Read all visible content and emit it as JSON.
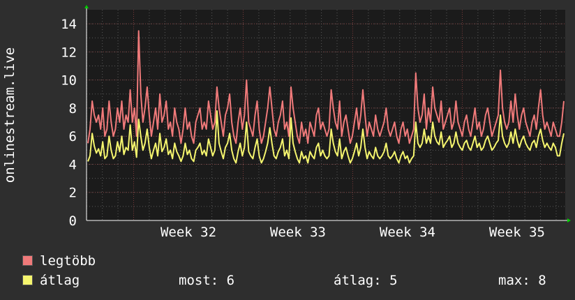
{
  "chart_data": {
    "type": "line",
    "ylabel": "onlinestream.live",
    "ylim": [
      0,
      15
    ],
    "yticks": [
      0,
      2,
      4,
      6,
      8,
      10,
      12,
      14
    ],
    "x_tick_labels": [
      "Week 32",
      "Week 33",
      "Week 34",
      "Week 35"
    ],
    "grid": true,
    "colors": {
      "background": "#2e2e2e",
      "plot_background": "#1b1b1b",
      "grid": "#5a5a5a",
      "major_grid": "#7a3a3a",
      "axis": "#ffffff",
      "arrow": "#00cc00",
      "legtobb": "#f07a7a",
      "atlag": "#f5f56e"
    },
    "series": [
      {
        "name": "legtöbb",
        "color": "#f07a7a",
        "values": [
          5.5,
          6.5,
          8.5,
          7.5,
          7.0,
          7.5,
          6.5,
          8.0,
          6.0,
          6.5,
          8.5,
          7.0,
          6.0,
          6.5,
          8.0,
          7.0,
          8.5,
          6.5,
          7.5,
          7.0,
          9.3,
          7.0,
          8.0,
          6.0,
          13.5,
          9.0,
          7.0,
          8.0,
          9.5,
          7.5,
          6.0,
          7.0,
          8.0,
          6.5,
          9.0,
          7.0,
          7.5,
          8.5,
          6.5,
          7.0,
          6.0,
          8.0,
          7.0,
          6.5,
          5.5,
          6.5,
          8.0,
          6.5,
          7.0,
          6.0,
          5.5,
          7.0,
          7.5,
          8.0,
          6.5,
          7.0,
          6.5,
          8.5,
          7.5,
          6.5,
          7.0,
          9.5,
          8.0,
          7.0,
          6.0,
          7.5,
          8.0,
          9.0,
          7.0,
          6.0,
          5.5,
          7.0,
          8.0,
          6.5,
          7.5,
          10.0,
          7.0,
          6.5,
          6.0,
          7.5,
          8.5,
          6.5,
          5.5,
          6.0,
          7.0,
          8.0,
          9.5,
          8.0,
          6.5,
          6.0,
          7.0,
          7.5,
          8.5,
          6.5,
          7.0,
          6.0,
          9.5,
          8.0,
          7.0,
          6.0,
          5.5,
          7.0,
          6.0,
          6.5,
          5.5,
          7.0,
          6.5,
          6.0,
          7.5,
          8.0,
          6.5,
          7.0,
          6.5,
          6.0,
          6.5,
          9.3,
          8.0,
          7.0,
          6.5,
          8.5,
          6.0,
          7.0,
          7.5,
          6.5,
          5.5,
          6.0,
          7.0,
          8.0,
          6.5,
          7.5,
          9.3,
          7.5,
          6.0,
          7.0,
          6.5,
          6.0,
          7.5,
          6.5,
          6.0,
          6.5,
          7.0,
          8.0,
          6.5,
          6.0,
          6.5,
          7.0,
          6.0,
          5.5,
          6.5,
          7.0,
          6.0,
          6.5,
          5.5,
          6.0,
          6.5,
          10.5,
          8.0,
          7.0,
          7.5,
          9.0,
          6.5,
          8.0,
          7.0,
          9.5,
          8.0,
          7.5,
          7.0,
          8.5,
          6.5,
          7.0,
          7.5,
          8.0,
          6.5,
          7.0,
          8.5,
          7.0,
          6.5,
          6.0,
          7.0,
          7.5,
          6.5,
          6.0,
          7.0,
          8.0,
          6.5,
          7.0,
          6.0,
          6.5,
          7.5,
          8.0,
          7.0,
          6.0,
          6.5,
          7.0,
          7.5,
          10.7,
          8.0,
          7.0,
          6.5,
          7.0,
          8.5,
          7.0,
          9.0,
          7.5,
          6.5,
          7.5,
          8.0,
          7.0,
          6.5,
          6.0,
          7.0,
          7.5,
          6.5,
          8.0,
          9.3,
          7.5,
          6.5,
          7.0,
          6.5,
          6.0,
          7.0,
          6.5,
          6.0,
          6.0,
          7.0,
          8.5
        ]
      },
      {
        "name": "átlag",
        "color": "#f5f56e",
        "values": [
          4.2,
          4.6,
          6.2,
          5.3,
          4.8,
          5.1,
          4.6,
          5.6,
          4.4,
          4.6,
          6.0,
          5.0,
          4.4,
          4.6,
          5.6,
          4.9,
          6.0,
          4.7,
          5.2,
          5.0,
          6.8,
          5.0,
          5.6,
          4.5,
          7.2,
          6.0,
          5.0,
          5.5,
          6.5,
          5.2,
          4.4,
          5.0,
          5.5,
          4.6,
          6.2,
          4.9,
          5.2,
          5.8,
          4.7,
          5.0,
          4.4,
          5.5,
          4.9,
          4.6,
          4.2,
          4.6,
          5.5,
          4.7,
          5.0,
          4.4,
          4.2,
          5.0,
          5.2,
          5.5,
          4.7,
          5.0,
          4.6,
          5.8,
          5.2,
          4.6,
          5.0,
          7.8,
          5.5,
          4.9,
          4.4,
          5.2,
          5.5,
          6.2,
          5.0,
          4.4,
          4.1,
          4.9,
          5.5,
          4.6,
          5.2,
          7.0,
          4.9,
          4.6,
          4.4,
          5.2,
          5.8,
          4.6,
          4.1,
          4.4,
          4.9,
          5.5,
          6.6,
          5.5,
          4.6,
          4.4,
          4.9,
          5.2,
          5.8,
          4.6,
          5.0,
          4.4,
          7.3,
          5.5,
          4.9,
          4.4,
          4.1,
          4.9,
          4.4,
          4.6,
          4.1,
          4.9,
          4.6,
          4.4,
          5.2,
          5.5,
          4.6,
          5.0,
          4.6,
          4.4,
          4.6,
          6.5,
          5.5,
          4.9,
          4.6,
          5.8,
          4.4,
          4.9,
          5.2,
          4.6,
          4.1,
          4.4,
          4.9,
          5.5,
          4.6,
          5.2,
          6.5,
          5.2,
          4.4,
          4.9,
          4.6,
          4.4,
          5.2,
          4.6,
          4.4,
          4.6,
          4.9,
          5.5,
          4.6,
          4.4,
          4.6,
          4.9,
          4.4,
          4.1,
          4.6,
          4.9,
          4.4,
          4.6,
          4.1,
          4.4,
          4.6,
          7.0,
          5.5,
          5.2,
          5.5,
          6.5,
          5.5,
          6.0,
          5.5,
          7.0,
          6.0,
          5.6,
          5.4,
          6.3,
          5.2,
          5.5,
          5.7,
          6.0,
          5.2,
          5.5,
          6.3,
          5.5,
          5.2,
          5.0,
          5.5,
          5.7,
          5.2,
          5.0,
          5.5,
          6.0,
          5.2,
          5.5,
          5.0,
          5.2,
          5.7,
          6.0,
          5.5,
          5.0,
          5.2,
          5.5,
          5.7,
          7.5,
          6.0,
          5.5,
          5.2,
          5.5,
          6.3,
          5.5,
          6.5,
          5.7,
          5.2,
          5.7,
          6.0,
          5.5,
          5.2,
          5.0,
          5.5,
          5.7,
          5.2,
          6.0,
          6.5,
          5.7,
          5.2,
          5.5,
          5.2,
          5.0,
          5.5,
          5.2,
          4.6,
          4.6,
          5.5,
          6.2
        ]
      }
    ]
  },
  "legend": {
    "max_label": "legtöbb",
    "avg_label": "átlag"
  },
  "stats": {
    "now": "most: 6",
    "avg": "átlag: 5",
    "max": "max: 8"
  }
}
